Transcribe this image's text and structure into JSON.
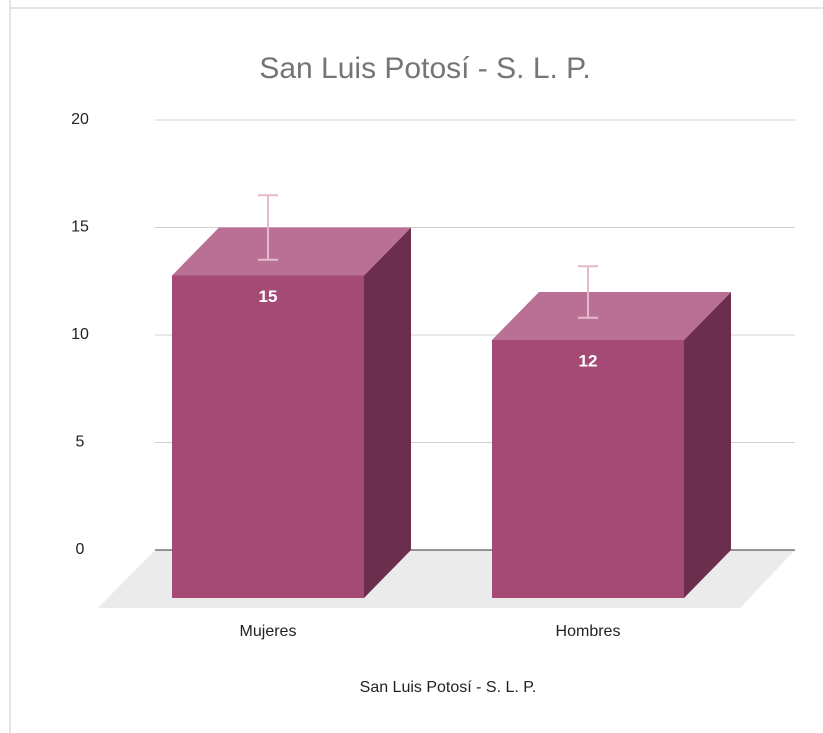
{
  "chart_data": {
    "type": "bar",
    "title": "San Luis Potosí - S. L. P.",
    "x_label": "San Luis Potosí - S. L. P.",
    "categories": [
      "Mujeres",
      "Hombres"
    ],
    "values": [
      15,
      12
    ],
    "errors": [
      1.5,
      1.2
    ],
    "color": "#a44a74",
    "ylim": [
      0,
      20
    ],
    "yticks": [
      0,
      5,
      10,
      15,
      20
    ],
    "grid": true
  }
}
